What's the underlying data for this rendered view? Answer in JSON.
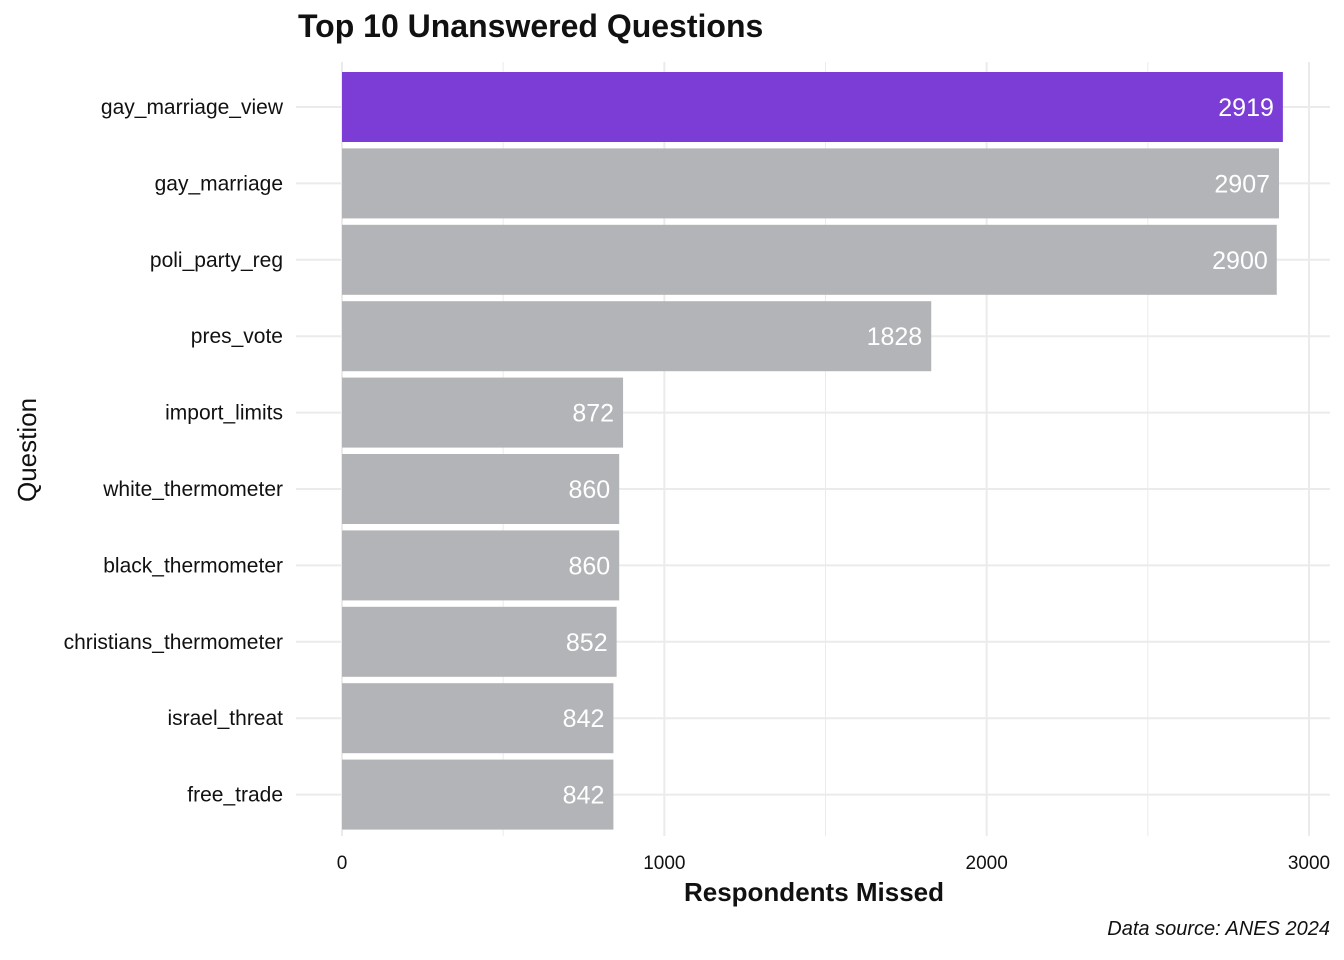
{
  "chart_data": {
    "type": "bar",
    "orientation": "horizontal",
    "title": "Top 10 Unanswered Questions",
    "xlabel": "Respondents Missed",
    "ylabel": "Question",
    "caption": "Data source: ANES 2024",
    "categories": [
      "gay_marriage_view",
      "gay_marriage",
      "poli_party_reg",
      "pres_vote",
      "import_limits",
      "white_thermometer",
      "black_thermometer",
      "christians_thermometer",
      "israel_threat",
      "free_trade"
    ],
    "values": [
      2919,
      2907,
      2900,
      1828,
      872,
      860,
      860,
      852,
      842,
      842
    ],
    "data_labels": [
      "2919",
      "2907",
      "2900",
      "1828",
      "872",
      "860",
      "860",
      "852",
      "842",
      "842"
    ],
    "xlim": [
      0,
      3000
    ],
    "xticks": [
      0,
      1000,
      2000,
      3000
    ],
    "xtick_labels": [
      "0",
      "1000",
      "2000",
      "3000"
    ],
    "highlight_index": 0,
    "grid": true,
    "legend": "none",
    "colors": {
      "highlight": "#7B3DD6",
      "default": "#B3B4B7",
      "grid": "#EBEBEB",
      "data_label": "#FFFFFF",
      "text": "#111111"
    }
  }
}
